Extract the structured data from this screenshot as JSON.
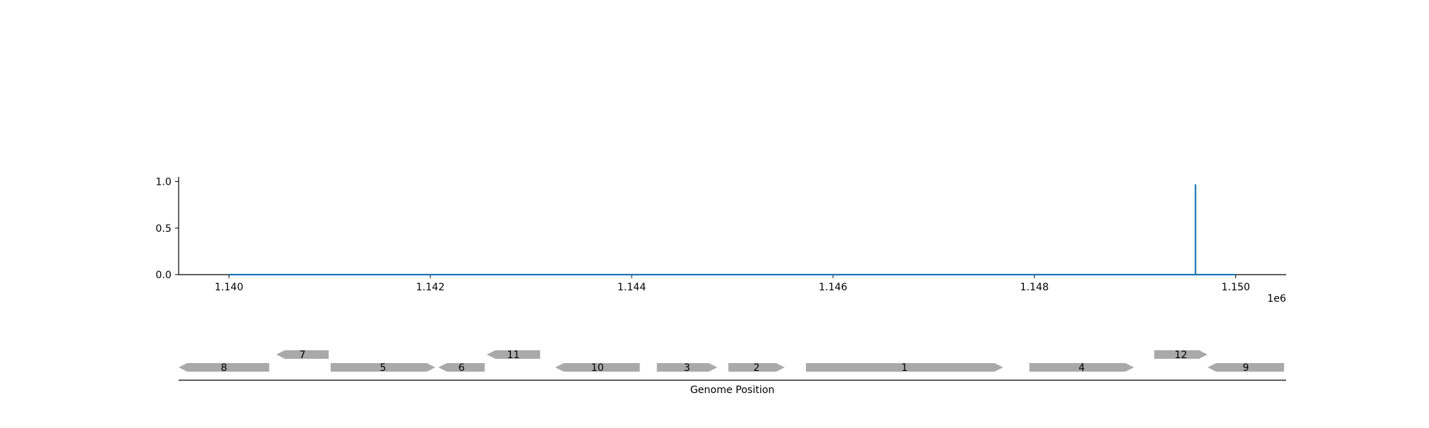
{
  "chart_data": [
    {
      "type": "line",
      "title": "",
      "xlabel": "",
      "ylabel": "",
      "x_offset_label": "1e6",
      "xlim": [
        1139500,
        1150500
      ],
      "ylim": [
        0,
        1.05
      ],
      "x_ticks": [
        1140000,
        1142000,
        1144000,
        1146000,
        1148000,
        1150000
      ],
      "x_tick_labels": [
        "1.140",
        "1.142",
        "1.144",
        "1.146",
        "1.148",
        "1.150"
      ],
      "y_ticks": [
        0.0,
        0.5,
        1.0
      ],
      "y_tick_labels": [
        "0.0",
        "0.5",
        "1.0"
      ],
      "grid": false,
      "series": [
        {
          "color": "#1f77b4",
          "x": [
            1140000,
            1149600,
            1149600,
            1149600,
            1150000
          ],
          "y": [
            0,
            0,
            0.97,
            0,
            0
          ]
        }
      ]
    },
    {
      "type": "gene-track",
      "xlabel": "Genome Position",
      "xlim": [
        1139500,
        1150500
      ],
      "gene_color": "#a9a9a9",
      "genes": [
        {
          "label": "8",
          "start": 1139500,
          "end": 1140400,
          "strand": "-",
          "row": 0
        },
        {
          "label": "7",
          "start": 1140470,
          "end": 1140990,
          "strand": "-",
          "row": 1
        },
        {
          "label": "5",
          "start": 1141010,
          "end": 1142050,
          "strand": "+",
          "row": 0
        },
        {
          "label": "6",
          "start": 1142080,
          "end": 1142540,
          "strand": "-",
          "row": 0
        },
        {
          "label": "11",
          "start": 1142560,
          "end": 1143090,
          "strand": "-",
          "row": 1
        },
        {
          "label": "10",
          "start": 1143240,
          "end": 1144080,
          "strand": "-",
          "row": 0
        },
        {
          "label": "3",
          "start": 1144250,
          "end": 1144850,
          "strand": "+",
          "row": 0
        },
        {
          "label": "2",
          "start": 1144960,
          "end": 1145520,
          "strand": "+",
          "row": 0
        },
        {
          "label": "1",
          "start": 1145730,
          "end": 1147690,
          "strand": "+",
          "row": 0
        },
        {
          "label": "4",
          "start": 1147950,
          "end": 1148990,
          "strand": "+",
          "row": 0
        },
        {
          "label": "12",
          "start": 1149190,
          "end": 1149720,
          "strand": "+",
          "row": 1
        },
        {
          "label": "9",
          "start": 1149720,
          "end": 1150480,
          "strand": "-",
          "row": 0
        }
      ]
    }
  ]
}
